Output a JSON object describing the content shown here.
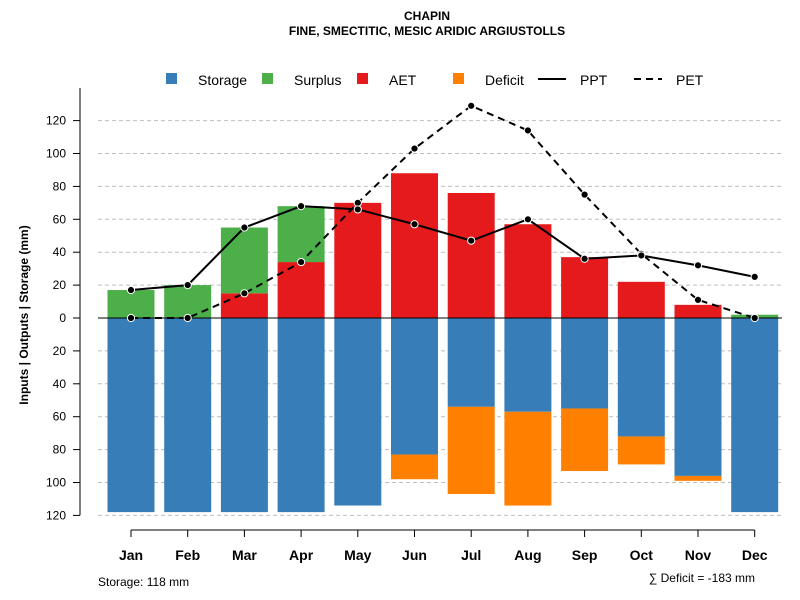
{
  "chart_data": {
    "type": "bar",
    "title": "CHAPIN",
    "subtitle": "FINE, SMECTITIC, MESIC ARIDIC ARGIUSTOLLS",
    "ylabel": "Inputs | Outputs | Storage    (mm)",
    "categories": [
      "Jan",
      "Feb",
      "Mar",
      "Apr",
      "May",
      "Jun",
      "Jul",
      "Aug",
      "Sep",
      "Oct",
      "Nov",
      "Dec"
    ],
    "ylim": [
      -120,
      130
    ],
    "yticks": [
      120,
      100,
      80,
      60,
      40,
      20,
      0,
      -20,
      -40,
      -60,
      -80,
      -100,
      -120
    ],
    "ytick_labels": [
      "120",
      "100",
      "80",
      "60",
      "40",
      "20",
      "0",
      "20",
      "40",
      "60",
      "80",
      "100",
      "120"
    ],
    "legend": {
      "storage": "Storage",
      "surplus": "Surplus",
      "aet": "AET",
      "deficit": "Deficit",
      "ppt": "PPT",
      "pet": "PET"
    },
    "series": [
      {
        "name": "Storage",
        "values": [
          118,
          118,
          118,
          118,
          114,
          83,
          54,
          57,
          55,
          72,
          96,
          118
        ]
      },
      {
        "name": "Deficit",
        "values": [
          0,
          0,
          0,
          0,
          0,
          15,
          53,
          57,
          38,
          17,
          3,
          0
        ]
      },
      {
        "name": "AET",
        "values": [
          0,
          0,
          15,
          34,
          70,
          88,
          76,
          57,
          37,
          22,
          8,
          0
        ]
      },
      {
        "name": "Surplus",
        "values": [
          17,
          20,
          40,
          34,
          0,
          0,
          0,
          0,
          0,
          0,
          0,
          2
        ]
      },
      {
        "name": "PPT",
        "values": [
          17,
          20,
          55,
          68,
          66,
          57,
          47,
          60,
          36,
          38,
          32,
          25
        ]
      },
      {
        "name": "PET",
        "values": [
          0,
          0,
          15,
          34,
          70,
          103,
          129,
          114,
          75,
          39,
          11,
          0
        ]
      }
    ],
    "colors": {
      "storage": "#377EB8",
      "surplus": "#4DAF4A",
      "aet": "#E41A1C",
      "deficit": "#FF7F00",
      "line": "#000000",
      "grid": "#BEBEBE"
    },
    "storage_note": "Storage: 118 mm",
    "deficit_note": "∑ Deficit = -183 mm",
    "grid": true,
    "legend_position": "top"
  }
}
